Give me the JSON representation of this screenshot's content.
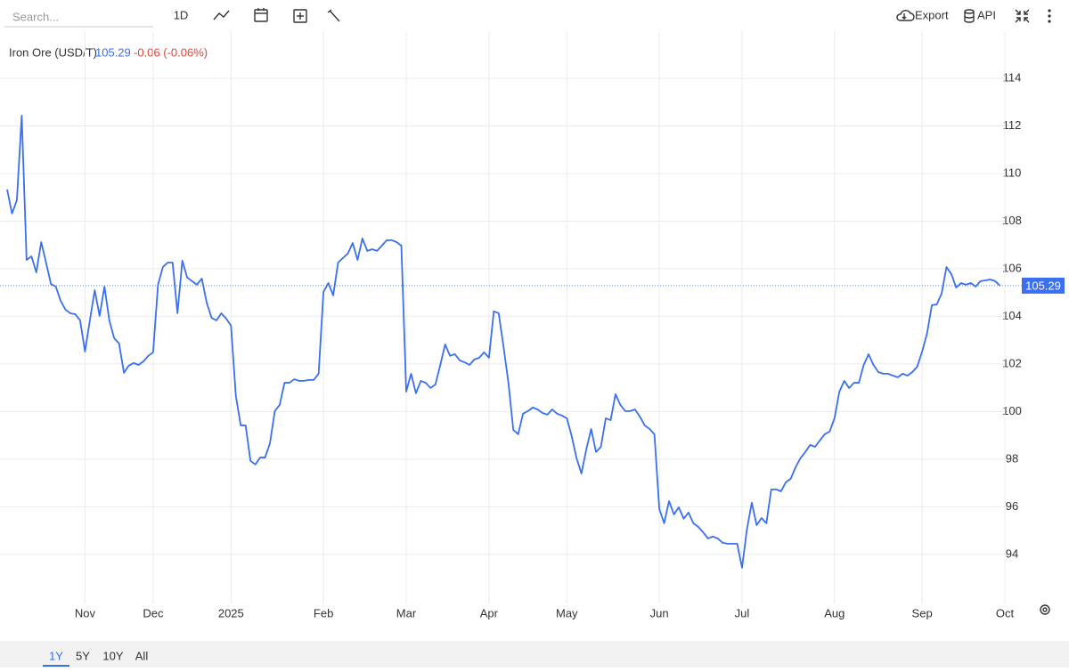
{
  "toolbar": {
    "search_placeholder": "Search...",
    "interval": "1D",
    "export": "Export",
    "api": "API"
  },
  "range_buttons": [
    "1Y",
    "5Y",
    "10Y",
    "All"
  ],
  "chart_data": {
    "type": "line",
    "title": "Iron Ore (USD/T)",
    "change": "-0.06 (-0.06%)",
    "color": "#3a6ff0",
    "grid": true,
    "ylim": [
      91.94,
      115.98
    ],
    "yticks": [
      94,
      96,
      98,
      100,
      102,
      104,
      106,
      108,
      110,
      112,
      114
    ],
    "categories": [
      null,
      null,
      null,
      null,
      null,
      null,
      null,
      null,
      null,
      null,
      null,
      null,
      null,
      null,
      null,
      null,
      "Nov",
      null,
      null,
      null,
      null,
      null,
      null,
      null,
      null,
      null,
      null,
      null,
      null,
      null,
      "Dec",
      null,
      null,
      null,
      null,
      null,
      null,
      null,
      null,
      null,
      null,
      null,
      null,
      null,
      null,
      null,
      "2025",
      null,
      null,
      null,
      null,
      null,
      null,
      null,
      null,
      null,
      null,
      null,
      null,
      null,
      null,
      null,
      null,
      null,
      null,
      "Feb",
      null,
      null,
      null,
      null,
      null,
      null,
      null,
      null,
      null,
      null,
      null,
      null,
      null,
      null,
      null,
      null,
      "Mar",
      null,
      null,
      null,
      null,
      null,
      null,
      null,
      null,
      null,
      null,
      null,
      null,
      null,
      null,
      null,
      null,
      "Apr",
      null,
      null,
      null,
      null,
      null,
      null,
      null,
      null,
      null,
      null,
      null,
      null,
      null,
      null,
      null,
      "May",
      null,
      null,
      null,
      null,
      null,
      null,
      null,
      null,
      null,
      null,
      null,
      null,
      null,
      null,
      null,
      null,
      null,
      null,
      "Jun",
      null,
      null,
      null,
      null,
      null,
      null,
      null,
      null,
      null,
      null,
      null,
      null,
      null,
      null,
      null,
      null,
      "Jul",
      null,
      null,
      null,
      null,
      null,
      null,
      null,
      null,
      null,
      null,
      null,
      null,
      null,
      null,
      null,
      null,
      null,
      null,
      "Aug",
      null,
      null,
      null,
      null,
      null,
      null,
      null,
      null,
      null,
      null,
      null,
      null,
      null,
      null,
      null,
      null,
      null,
      "Sep",
      null,
      null,
      null,
      null,
      null,
      null,
      null,
      null,
      null,
      null,
      null,
      null,
      null,
      null,
      null,
      null,
      "Oct"
    ],
    "values": [
      109.33,
      108.32,
      108.88,
      112.43,
      106.37,
      106.52,
      105.85,
      107.12,
      106.26,
      105.36,
      105.25,
      104.65,
      104.28,
      104.13,
      104.09,
      103.83,
      102.52,
      103.83,
      105.1,
      104.02,
      105.25,
      103.83,
      103.08,
      102.86,
      101.63,
      101.93,
      102.04,
      101.96,
      102.11,
      102.34,
      102.49,
      105.33,
      106.07,
      106.26,
      106.26,
      104.13,
      106.34,
      105.63,
      105.48,
      105.33,
      105.59,
      104.58,
      103.94,
      103.83,
      104.13,
      103.91,
      103.61,
      100.65,
      99.42,
      99.42,
      97.93,
      97.78,
      98.07,
      98.07,
      98.67,
      100.02,
      100.28,
      101.21,
      101.21,
      101.36,
      101.29,
      101.29,
      101.33,
      101.33,
      101.59,
      105.03,
      105.4,
      104.88,
      106.26,
      106.45,
      106.64,
      107.08,
      106.37,
      107.27,
      106.75,
      106.82,
      106.75,
      106.97,
      107.2,
      107.2,
      107.12,
      106.97,
      100.84,
      101.59,
      100.77,
      101.29,
      101.21,
      100.99,
      101.14,
      101.96,
      102.82,
      102.34,
      102.41,
      102.15,
      102.07,
      101.96,
      102.19,
      102.26,
      102.49,
      102.26,
      104.21,
      104.13,
      102.71,
      101.21,
      99.23,
      99.05,
      99.91,
      100.02,
      100.17,
      100.09,
      99.94,
      99.87,
      100.09,
      99.91,
      99.83,
      99.72,
      98.97,
      98.04,
      97.4,
      98.41,
      99.27,
      98.3,
      98.52,
      99.72,
      99.64,
      100.73,
      100.28,
      100.02,
      100.02,
      100.09,
      99.79,
      99.42,
      99.27,
      99.05,
      95.91,
      95.31,
      96.24,
      95.68,
      95.98,
      95.5,
      95.76,
      95.31,
      95.16,
      94.93,
      94.67,
      94.75,
      94.67,
      94.49,
      94.45,
      94.45,
      94.45,
      93.44,
      95.05,
      96.17,
      95.23,
      95.53,
      95.31,
      96.73,
      96.73,
      96.65,
      97.03,
      97.18,
      97.66,
      98.04,
      98.3,
      98.6,
      98.52,
      98.79,
      99.05,
      99.16,
      99.72,
      100.84,
      101.29,
      100.99,
      101.21,
      101.21,
      101.96,
      102.41,
      101.96,
      101.66,
      101.59,
      101.59,
      101.51,
      101.44,
      101.59,
      101.51,
      101.66,
      101.89,
      102.52,
      103.27,
      104.47,
      104.5,
      104.95,
      106.07,
      105.78,
      105.21,
      105.4,
      105.33,
      105.4,
      105.25,
      105.48,
      105.51,
      105.55,
      105.48,
      105.29,
      null
    ]
  }
}
